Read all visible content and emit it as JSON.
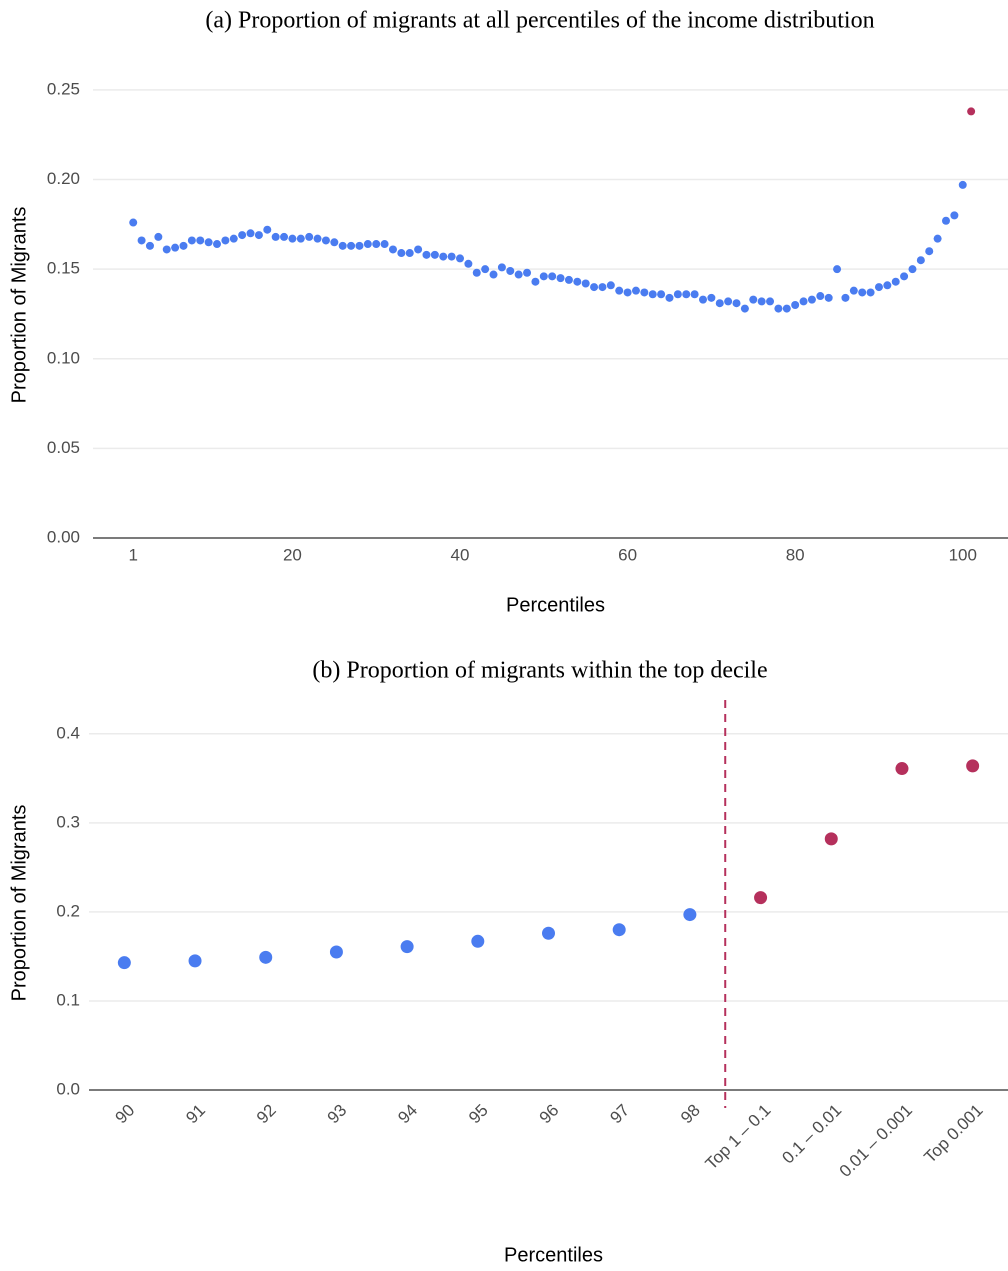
{
  "chart_data": [
    {
      "type": "scatter",
      "title": "(a) Proportion of migrants at all percentiles of the income distribution",
      "xlabel": "Percentiles",
      "ylabel": "Proportion of Migrants",
      "xlim": [
        -3.8,
        105.4
      ],
      "xticks": [
        1,
        20,
        40,
        60,
        80,
        100
      ],
      "ylim": [
        0,
        0.26
      ],
      "yticks": [
        {
          "value": 0,
          "label": "0.00"
        },
        0.05,
        {
          "value": 0.1,
          "label": "0.10"
        },
        0.15,
        {
          "value": 0.2,
          "label": "0.20"
        },
        0.25
      ],
      "grid": true,
      "series": [
        {
          "color": "#4a7cf0",
          "x": [
            1,
            2,
            3,
            4,
            5,
            6,
            7,
            8,
            9,
            10,
            11,
            12,
            13,
            14,
            15,
            16,
            17,
            18,
            19,
            20,
            21,
            22,
            23,
            24,
            25,
            26,
            27,
            28,
            29,
            30,
            31,
            32,
            33,
            34,
            35,
            36,
            37,
            38,
            39,
            40,
            41,
            42,
            43,
            44,
            45,
            46,
            47,
            48,
            49,
            50,
            51,
            52,
            53,
            54,
            55,
            56,
            57,
            58,
            59,
            60,
            61,
            62,
            63,
            64,
            65,
            66,
            67,
            68,
            69,
            70,
            71,
            72,
            73,
            74,
            75,
            76,
            77,
            78,
            79,
            80,
            81,
            82,
            83,
            84,
            85,
            86,
            87,
            88,
            89,
            90,
            91,
            92,
            93,
            94,
            95,
            96,
            97,
            98,
            99,
            100
          ],
          "values": [
            0.176,
            0.166,
            0.163,
            0.168,
            0.161,
            0.162,
            0.163,
            0.166,
            0.166,
            0.165,
            0.164,
            0.166,
            0.167,
            0.169,
            0.17,
            0.169,
            0.172,
            0.168,
            0.168,
            0.167,
            0.167,
            0.168,
            0.167,
            0.166,
            0.165,
            0.163,
            0.163,
            0.163,
            0.164,
            0.164,
            0.164,
            0.161,
            0.159,
            0.159,
            0.161,
            0.158,
            0.158,
            0.157,
            0.157,
            0.156,
            0.153,
            0.148,
            0.15,
            0.147,
            0.151,
            0.149,
            0.147,
            0.148,
            0.143,
            0.146,
            0.146,
            0.145,
            0.144,
            0.143,
            0.142,
            0.14,
            0.14,
            0.141,
            0.138,
            0.137,
            0.138,
            0.137,
            0.136,
            0.136,
            0.134,
            0.136,
            0.136,
            0.136,
            0.133,
            0.134,
            0.131,
            0.132,
            0.131,
            0.128,
            0.133,
            0.132,
            0.132,
            0.128,
            0.128,
            0.13,
            0.132,
            0.133,
            0.135,
            0.134,
            0.15,
            0.134,
            0.138,
            0.137,
            0.137,
            0.14,
            0.141,
            0.143,
            0.146,
            0.15,
            0.155,
            0.16,
            0.167,
            0.177,
            0.18,
            0.197
          ]
        },
        {
          "color": "#b5305c",
          "x": [
            101
          ],
          "values": [
            0.238
          ]
        }
      ]
    },
    {
      "type": "dot",
      "title": "(b) Proportion of migrants within the top decile",
      "xlabel": "Percentiles",
      "ylabel": "Proportion of Migrants",
      "categories": [
        "90",
        "91",
        "92",
        "93",
        "94",
        "95",
        "96",
        "97",
        "98",
        "Top 1 – 0.1",
        "0.1 – 0.01",
        "0.01 – 0.001",
        "Top 0.001"
      ],
      "values": [
        0.143,
        0.145,
        0.149,
        0.155,
        0.161,
        0.167,
        0.176,
        0.18,
        0.197,
        0.216,
        0.282,
        0.361,
        0.364
      ],
      "colors": [
        "#4a7cf0",
        "#4a7cf0",
        "#4a7cf0",
        "#4a7cf0",
        "#4a7cf0",
        "#4a7cf0",
        "#4a7cf0",
        "#4a7cf0",
        "#4a7cf0",
        "#b5305c",
        "#b5305c",
        "#b5305c",
        "#b5305c"
      ],
      "ylim": [
        0,
        0.42
      ],
      "yticks": [
        {
          "value": 0,
          "label": "0.0"
        },
        0.1,
        0.2,
        0.3,
        0.4
      ],
      "grid": true
    }
  ]
}
